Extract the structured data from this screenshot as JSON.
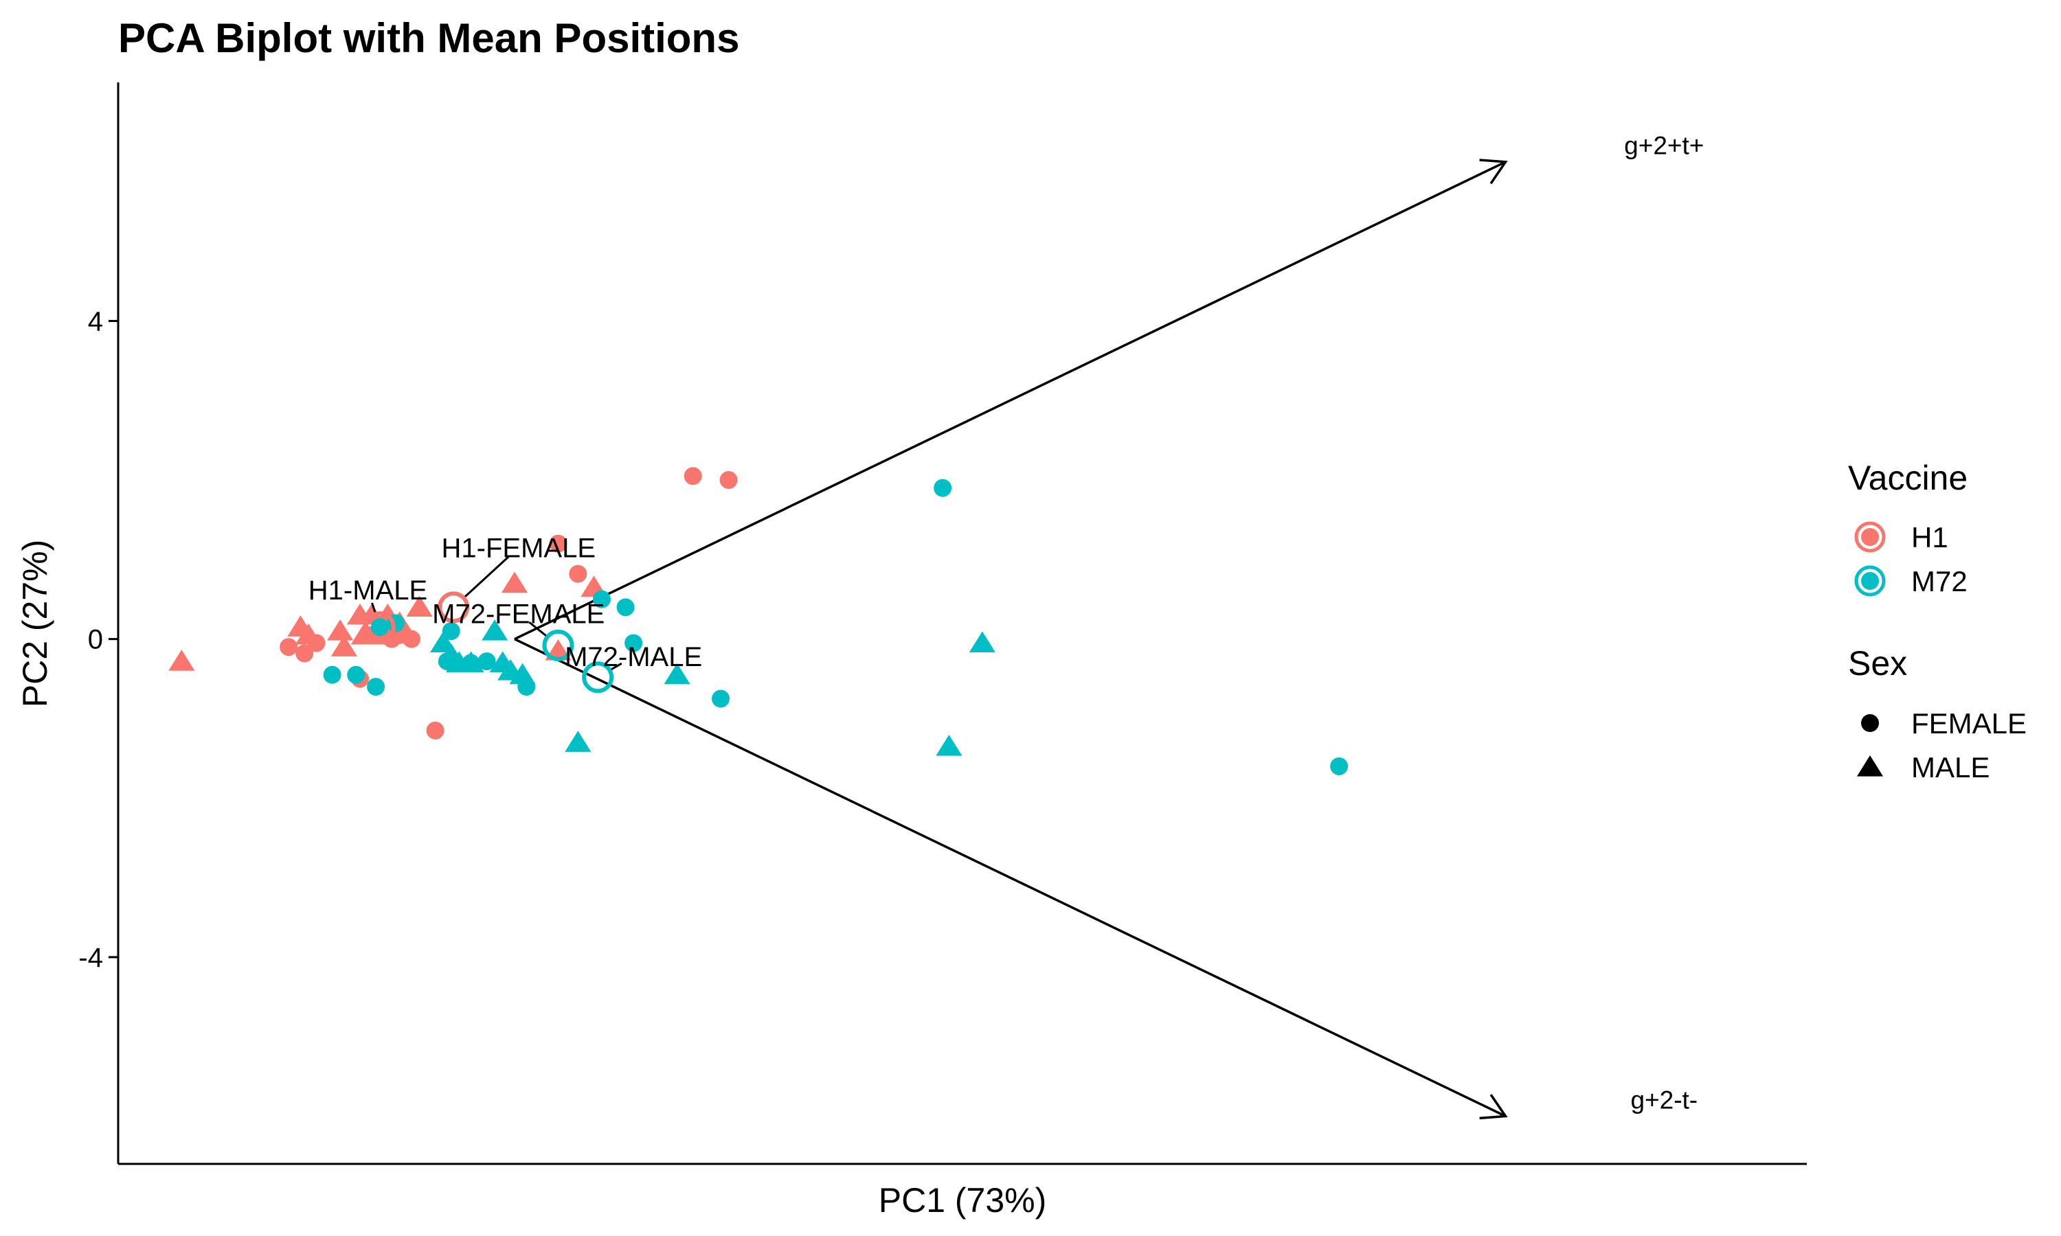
{
  "chart_data": {
    "type": "scatter",
    "title": "PCA Biplot with Mean Positions",
    "xlabel": "PC1 (73%)",
    "ylabel": "PC2 (27%)",
    "xlim": [
      -4.5,
      16.8
    ],
    "ylim": [
      -6.6,
      7.0
    ],
    "x_ticks": [],
    "y_ticks": [
      -4,
      0,
      4
    ],
    "y_tick_labels": [
      "-4",
      "0",
      "4"
    ],
    "grid": false,
    "legend_position": "right",
    "colors": {
      "H1": "#F8766D",
      "M72": "#00BFC4"
    },
    "legends": [
      {
        "title": "Vaccine",
        "entries": [
          {
            "label": "H1",
            "color": "#F8766D"
          },
          {
            "label": "M72",
            "color": "#00BFC4"
          }
        ]
      },
      {
        "title": "Sex",
        "entries": [
          {
            "label": "FEMALE",
            "shape": "circle"
          },
          {
            "label": "MALE",
            "shape": "triangle"
          }
        ]
      }
    ],
    "points": [
      {
        "vaccine": "H1",
        "sex": "FEMALE",
        "x": -2.35,
        "y": -0.1
      },
      {
        "vaccine": "H1",
        "sex": "FEMALE",
        "x": -2.15,
        "y": -0.18
      },
      {
        "vaccine": "H1",
        "sex": "FEMALE",
        "x": -2.0,
        "y": -0.05
      },
      {
        "vaccine": "H1",
        "sex": "FEMALE",
        "x": -1.45,
        "y": -0.5
      },
      {
        "vaccine": "H1",
        "sex": "FEMALE",
        "x": -1.35,
        "y": 0.05
      },
      {
        "vaccine": "H1",
        "sex": "FEMALE",
        "x": -1.2,
        "y": 0.1
      },
      {
        "vaccine": "H1",
        "sex": "FEMALE",
        "x": -1.05,
        "y": 0.0
      },
      {
        "vaccine": "H1",
        "sex": "FEMALE",
        "x": -0.95,
        "y": 0.05
      },
      {
        "vaccine": "H1",
        "sex": "FEMALE",
        "x": -0.8,
        "y": 0.0
      },
      {
        "vaccine": "H1",
        "sex": "FEMALE",
        "x": -0.5,
        "y": -1.15
      },
      {
        "vaccine": "H1",
        "sex": "FEMALE",
        "x": 1.05,
        "y": 1.2
      },
      {
        "vaccine": "H1",
        "sex": "FEMALE",
        "x": 1.3,
        "y": 0.82
      },
      {
        "vaccine": "H1",
        "sex": "FEMALE",
        "x": 2.75,
        "y": 2.05
      },
      {
        "vaccine": "H1",
        "sex": "FEMALE",
        "x": 3.2,
        "y": 2.0
      },
      {
        "vaccine": "H1",
        "sex": "MALE",
        "x": -3.7,
        "y": -0.28
      },
      {
        "vaccine": "H1",
        "sex": "MALE",
        "x": -2.2,
        "y": 0.15
      },
      {
        "vaccine": "H1",
        "sex": "MALE",
        "x": -2.1,
        "y": 0.05
      },
      {
        "vaccine": "H1",
        "sex": "MALE",
        "x": -1.7,
        "y": 0.1
      },
      {
        "vaccine": "H1",
        "sex": "MALE",
        "x": -1.65,
        "y": -0.1
      },
      {
        "vaccine": "H1",
        "sex": "MALE",
        "x": -1.45,
        "y": 0.3
      },
      {
        "vaccine": "H1",
        "sex": "MALE",
        "x": -1.4,
        "y": 0.05
      },
      {
        "vaccine": "H1",
        "sex": "MALE",
        "x": -1.3,
        "y": 0.3
      },
      {
        "vaccine": "H1",
        "sex": "MALE",
        "x": -1.25,
        "y": 0.05
      },
      {
        "vaccine": "H1",
        "sex": "MALE",
        "x": -1.1,
        "y": 0.3
      },
      {
        "vaccine": "H1",
        "sex": "MALE",
        "x": -0.95,
        "y": 0.2
      },
      {
        "vaccine": "H1",
        "sex": "MALE",
        "x": -0.7,
        "y": 0.4
      },
      {
        "vaccine": "H1",
        "sex": "MALE",
        "x": 0.5,
        "y": 0.7
      },
      {
        "vaccine": "H1",
        "sex": "MALE",
        "x": 1.05,
        "y": -0.15
      },
      {
        "vaccine": "H1",
        "sex": "MALE",
        "x": 1.5,
        "y": 0.65
      },
      {
        "vaccine": "M72",
        "sex": "FEMALE",
        "x": -1.8,
        "y": -0.45
      },
      {
        "vaccine": "M72",
        "sex": "FEMALE",
        "x": -1.5,
        "y": -0.45
      },
      {
        "vaccine": "M72",
        "sex": "FEMALE",
        "x": -1.25,
        "y": -0.6
      },
      {
        "vaccine": "M72",
        "sex": "FEMALE",
        "x": -1.2,
        "y": 0.15
      },
      {
        "vaccine": "M72",
        "sex": "FEMALE",
        "x": -1.0,
        "y": 0.2
      },
      {
        "vaccine": "M72",
        "sex": "FEMALE",
        "x": -0.35,
        "y": -0.28
      },
      {
        "vaccine": "M72",
        "sex": "FEMALE",
        "x": -0.3,
        "y": 0.1
      },
      {
        "vaccine": "M72",
        "sex": "FEMALE",
        "x": -0.05,
        "y": -0.3
      },
      {
        "vaccine": "M72",
        "sex": "FEMALE",
        "x": 0.15,
        "y": -0.28
      },
      {
        "vaccine": "M72",
        "sex": "FEMALE",
        "x": 0.65,
        "y": -0.6
      },
      {
        "vaccine": "M72",
        "sex": "FEMALE",
        "x": 1.6,
        "y": 0.5
      },
      {
        "vaccine": "M72",
        "sex": "FEMALE",
        "x": 1.9,
        "y": 0.4
      },
      {
        "vaccine": "M72",
        "sex": "FEMALE",
        "x": 2.0,
        "y": -0.05
      },
      {
        "vaccine": "M72",
        "sex": "FEMALE",
        "x": 3.1,
        "y": -0.75
      },
      {
        "vaccine": "M72",
        "sex": "FEMALE",
        "x": 5.9,
        "y": 1.9
      },
      {
        "vaccine": "M72",
        "sex": "FEMALE",
        "x": 10.9,
        "y": -1.6
      },
      {
        "vaccine": "M72",
        "sex": "MALE",
        "x": -0.4,
        "y": -0.05
      },
      {
        "vaccine": "M72",
        "sex": "MALE",
        "x": -0.3,
        "y": -0.2
      },
      {
        "vaccine": "M72",
        "sex": "MALE",
        "x": -0.2,
        "y": -0.3
      },
      {
        "vaccine": "M72",
        "sex": "MALE",
        "x": -0.05,
        "y": -0.3
      },
      {
        "vaccine": "M72",
        "sex": "MALE",
        "x": 0.25,
        "y": 0.1
      },
      {
        "vaccine": "M72",
        "sex": "MALE",
        "x": 0.35,
        "y": -0.3
      },
      {
        "vaccine": "M72",
        "sex": "MALE",
        "x": 0.45,
        "y": -0.4
      },
      {
        "vaccine": "M72",
        "sex": "MALE",
        "x": 0.6,
        "y": -0.45
      },
      {
        "vaccine": "M72",
        "sex": "MALE",
        "x": 1.3,
        "y": -1.3
      },
      {
        "vaccine": "M72",
        "sex": "MALE",
        "x": 2.55,
        "y": -0.45
      },
      {
        "vaccine": "M72",
        "sex": "MALE",
        "x": 5.98,
        "y": -1.35
      },
      {
        "vaccine": "M72",
        "sex": "MALE",
        "x": 6.4,
        "y": -0.05
      }
    ],
    "means": [
      {
        "label": "H1-MALE",
        "vaccine": "H1",
        "x": -1.2,
        "y": 0.15,
        "label_x": -1.35,
        "label_y": 0.62
      },
      {
        "label": "H1-FEMALE",
        "vaccine": "H1",
        "x": -0.27,
        "y": 0.4,
        "label_x": 0.55,
        "label_y": 1.15
      },
      {
        "label": "M72-FEMALE",
        "vaccine": "M72",
        "x": 1.05,
        "y": -0.08,
        "label_x": 0.55,
        "label_y": 0.32
      },
      {
        "label": "M72-MALE",
        "vaccine": "M72",
        "x": 1.55,
        "y": -0.48,
        "label_x": 2.0,
        "label_y": -0.22
      }
    ],
    "loadings": [
      {
        "label": "g+2+t+",
        "x0": 0.5,
        "y0": 0.0,
        "x1": 13.0,
        "y1": 6.0,
        "label_x": 15.0,
        "label_y": 6.2
      },
      {
        "label": "g+2-t-",
        "x0": 0.5,
        "y0": 0.0,
        "x1": 13.0,
        "y1": -6.0,
        "label_x": 15.0,
        "label_y": -5.8
      }
    ]
  }
}
